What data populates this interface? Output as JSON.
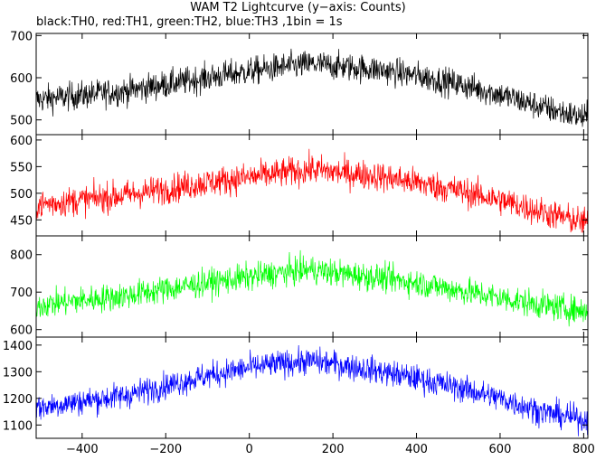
{
  "chart_data": {
    "type": "line",
    "title": "WAM T2 Lightcurve (y−axis: Counts)",
    "subtitle": "black:TH0, red:TH1, green:TH2, blue:TH3 ,1bin = 1s",
    "xlim": [
      -510,
      810
    ],
    "x_ticks": [
      -400,
      -200,
      0,
      200,
      400,
      600,
      800
    ],
    "x_tick_labels": [
      "−400",
      "−200",
      "0",
      "200",
      "400",
      "600",
      "800"
    ],
    "x_step": 1,
    "grid": false,
    "panels": [
      {
        "series": "TH0",
        "color": "#000000",
        "ylim": [
          465,
          705
        ],
        "y_ticks": [
          500,
          600,
          700
        ],
        "trend": {
          "x": [
            -510,
            -300,
            -100,
            0,
            100,
            150,
            200,
            300,
            400,
            500,
            600,
            700,
            800
          ],
          "y": [
            548,
            568,
            600,
            615,
            628,
            632,
            628,
            620,
            605,
            585,
            560,
            530,
            505
          ]
        },
        "noise": 30
      },
      {
        "series": "TH1",
        "color": "#ff0000",
        "ylim": [
          420,
          610
        ],
        "y_ticks": [
          450,
          500,
          550,
          600
        ],
        "trend": {
          "x": [
            -510,
            -300,
            -100,
            0,
            100,
            150,
            200,
            300,
            400,
            500,
            600,
            700,
            800
          ],
          "y": [
            478,
            496,
            520,
            530,
            540,
            545,
            540,
            533,
            520,
            505,
            487,
            465,
            445
          ]
        },
        "noise": 25
      },
      {
        "series": "TH2",
        "color": "#00ff00",
        "ylim": [
          580,
          850
        ],
        "y_ticks": [
          600,
          700,
          800
        ],
        "trend": {
          "x": [
            -510,
            -300,
            -100,
            0,
            100,
            150,
            200,
            300,
            400,
            500,
            600,
            700,
            800
          ],
          "y": [
            665,
            690,
            725,
            740,
            755,
            760,
            752,
            740,
            725,
            705,
            685,
            665,
            650
          ]
        },
        "noise": 33
      },
      {
        "series": "TH3",
        "color": "#0000ff",
        "ylim": [
          1050,
          1430
        ],
        "y_ticks": [
          1100,
          1200,
          1300,
          1400
        ],
        "trend": {
          "x": [
            -510,
            -300,
            -100,
            0,
            100,
            150,
            200,
            300,
            400,
            500,
            600,
            700,
            800
          ],
          "y": [
            1165,
            1210,
            1285,
            1315,
            1335,
            1340,
            1330,
            1305,
            1275,
            1240,
            1200,
            1150,
            1120
          ]
        },
        "noise": 45
      }
    ]
  }
}
